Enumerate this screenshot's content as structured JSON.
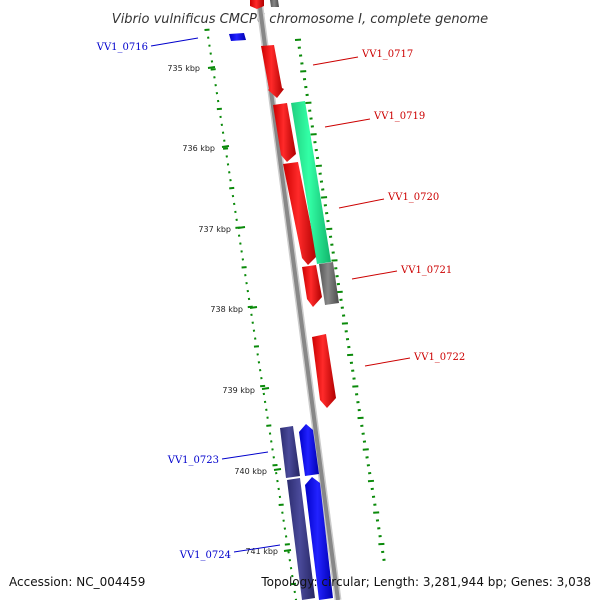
{
  "title": "Vibrio vulnificus CMCP6 chromosome I, complete genome",
  "footer": {
    "accession": "Accession: NC_004459",
    "summary": "Topology: circular; Length: 3,281,944 bp; Genes: 3,038"
  },
  "ticks": [
    "735 kbp",
    "736 kbp",
    "737 kbp",
    "738 kbp",
    "739 kbp",
    "740 kbp",
    "741 kbp"
  ],
  "genes": [
    {
      "name": "VV1_0716",
      "strand": "reverse",
      "color": "#0000ff"
    },
    {
      "name": "VV1_0717",
      "strand": "forward",
      "color": "#ff0000"
    },
    {
      "name": "VV1_0719",
      "strand": "forward",
      "color": "#ff0000"
    },
    {
      "name": "VV1_0720",
      "strand": "forward",
      "color": "#00e68a"
    },
    {
      "name": "VV1_0721",
      "strand": "forward",
      "color": "#ff0000"
    },
    {
      "name": "VV1_0722",
      "strand": "forward",
      "color": "#ff0000"
    },
    {
      "name": "VV1_0723",
      "strand": "reverse",
      "color": "#3a3a8a"
    },
    {
      "name": "VV1_0724",
      "strand": "reverse",
      "color": "#0000ff"
    }
  ],
  "colors": {
    "forward_label": "#cc0000",
    "reverse_label": "#0000cc",
    "backbone": "#888888",
    "gc_dots": "#0a8a0a",
    "unknown_gene": "#707070"
  }
}
